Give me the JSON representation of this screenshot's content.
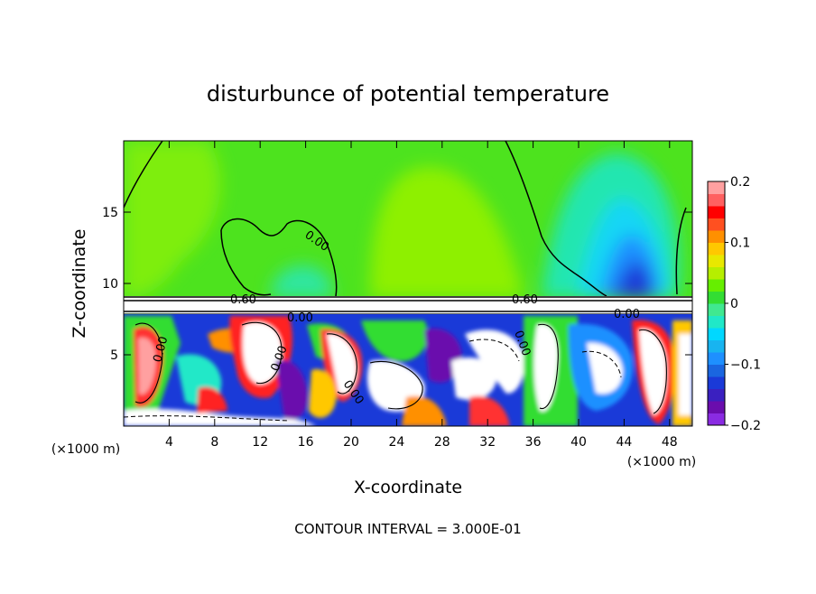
{
  "chart_data": {
    "type": "heatmap",
    "title": "disturbunce of potential temperature",
    "xlabel": "X-coordinate",
    "ylabel": "Z-coordinate",
    "x_unit": "(×1000 m)",
    "y_unit": "(×1000 m)",
    "xlim": [
      0,
      50
    ],
    "ylim": [
      0,
      20
    ],
    "x_ticks": [
      "4",
      "8",
      "12",
      "16",
      "20",
      "24",
      "28",
      "32",
      "36",
      "40",
      "44",
      "48"
    ],
    "y_ticks": [
      "5",
      "10",
      "15"
    ],
    "colorbar": {
      "range": [
        -0.2,
        0.2
      ],
      "labels": [
        "0.2",
        "0.1",
        "0",
        "−0.1",
        "−0.2"
      ],
      "colors": [
        "#8a2be2",
        "#6a0dad",
        "#3a20c0",
        "#1a3ad8",
        "#1a66e0",
        "#1e90ff",
        "#18b4f0",
        "#00d8ff",
        "#20e8c8",
        "#40e890",
        "#33dd33",
        "#66ee00",
        "#b6ee00",
        "#e8e800",
        "#ffc800",
        "#ff9000",
        "#ff5020",
        "#ff0000",
        "#ff6060",
        "#ffa0a0"
      ]
    },
    "contour_labels": [
      "0.00",
      "0.60",
      "0.60",
      "0.00",
      "0.00",
      "0.00",
      "0.00",
      "0.00",
      "0.00"
    ],
    "footer": "CONTOUR INTERVAL = 3.000E-01"
  }
}
